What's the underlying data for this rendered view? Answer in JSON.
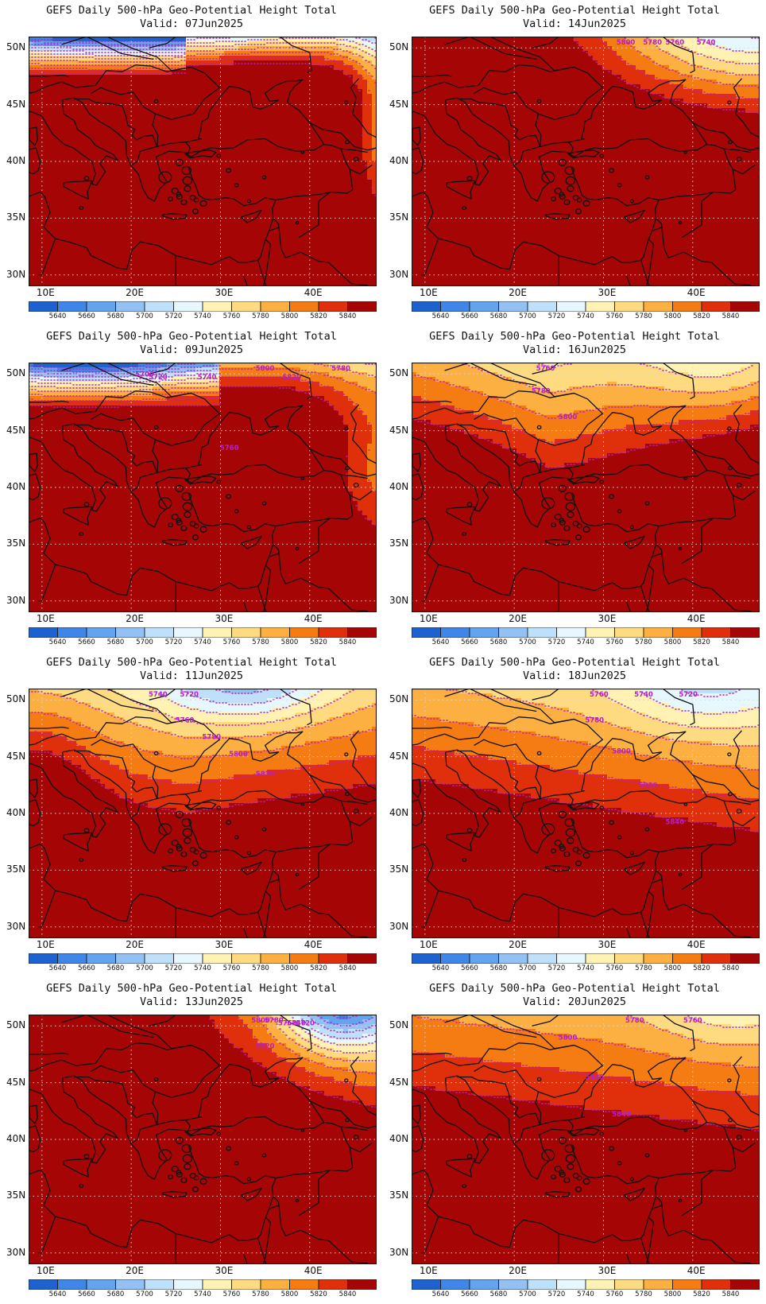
{
  "palette": {
    "levels": [
      5640,
      5660,
      5680,
      5700,
      5720,
      5740,
      5760,
      5780,
      5800,
      5820,
      5840
    ],
    "colors": [
      "#1e62d0",
      "#3f86e8",
      "#64a4ee",
      "#93c1f4",
      "#bfe0fb",
      "#e6f7fd",
      "#fff2b2",
      "#fedb81",
      "#fdb042",
      "#f47c12",
      "#e0300b",
      "#a60505"
    ],
    "contour_color": "#b520c8",
    "coast_color": "#111111",
    "grid_color": "#d8d8d8"
  },
  "colorbar_labels": [
    "5640",
    "5660",
    "5680",
    "5700",
    "5720",
    "5740",
    "5760",
    "5780",
    "5800",
    "5820",
    "5840"
  ],
  "axes": {
    "lon_labels": [
      "10E",
      "20E",
      "30E",
      "40E"
    ],
    "lat_labels": [
      "50N",
      "45N",
      "40N",
      "35N",
      "30N"
    ],
    "lon_range": [
      8.5,
      47.5
    ],
    "lat_range": [
      29,
      51
    ]
  },
  "panels": [
    {
      "title": "GEFS Daily 500-hPa Geo-Potential Height Total",
      "valid": "Valid: 07Jun2025",
      "labels": []
    },
    {
      "title": "GEFS Daily 500-hPa Geo-Potential Height Total",
      "valid": "Valid: 14Jun2025",
      "labels": [
        "5760",
        "5780",
        "5800",
        "5740"
      ]
    },
    {
      "title": "GEFS Daily 500-hPa Geo-Potential Height Total",
      "valid": "Valid: 09Jun2025",
      "labels": [
        "5700",
        "5720",
        "5740",
        "5760",
        "5780",
        "5800",
        "5820"
      ]
    },
    {
      "title": "GEFS Daily 500-hPa Geo-Potential Height Total",
      "valid": "Valid: 16Jun2025",
      "labels": [
        "5760",
        "5780",
        "5800"
      ]
    },
    {
      "title": "GEFS Daily 500-hPa Geo-Potential Height Total",
      "valid": "Valid: 11Jun2025",
      "labels": [
        "5720",
        "5740",
        "5760",
        "5780",
        "5800",
        "5820"
      ]
    },
    {
      "title": "GEFS Daily 500-hPa Geo-Potential Height Total",
      "valid": "Valid: 18Jun2025",
      "labels": [
        "5720",
        "5740",
        "5760",
        "5780",
        "5800",
        "5820",
        "5840"
      ]
    },
    {
      "title": "GEFS Daily 500-hPa Geo-Potential Height Total",
      "valid": "Valid: 13Jun2025",
      "labels": [
        "5720",
        "5740",
        "5760",
        "5780",
        "5800",
        "5820"
      ]
    },
    {
      "title": "GEFS Daily 500-hPa Geo-Potential Height Total",
      "valid": "Valid: 20Jun2025",
      "labels": [
        "5760",
        "5780",
        "5800",
        "5820",
        "5840"
      ]
    }
  ]
}
